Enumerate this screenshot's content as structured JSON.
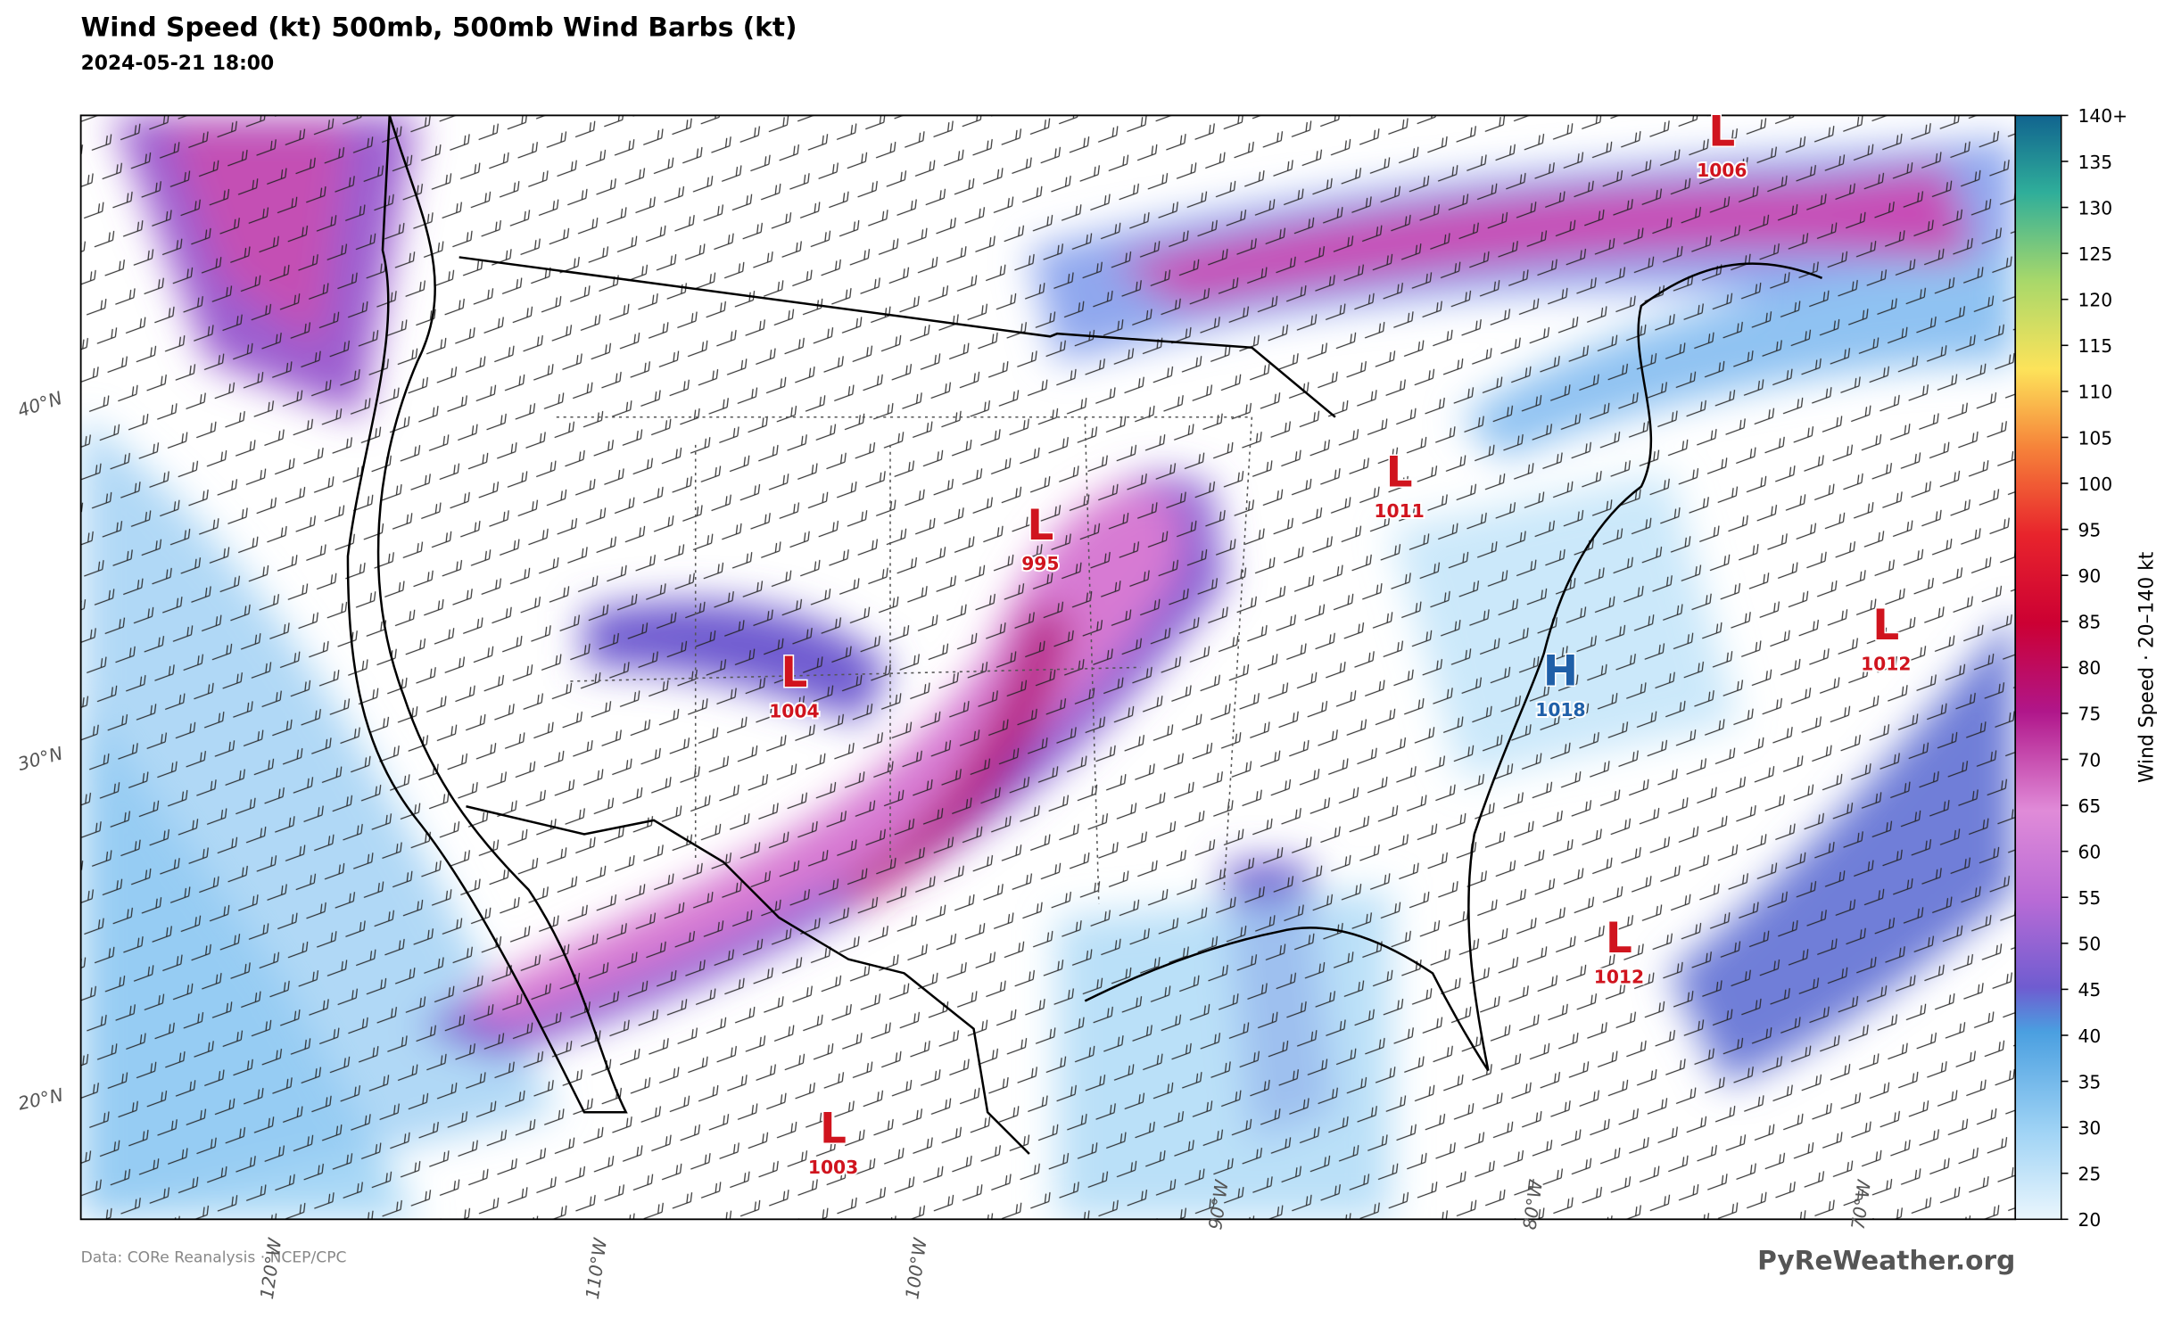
{
  "header": {
    "title": "Wind Speed (kt)  500mb, 500mb Wind Barbs (kt)",
    "subtitle": "2024-05-21 18:00"
  },
  "pressure_centers": [
    {
      "label": "L",
      "value": 1006
    },
    {
      "label": "L",
      "value": 995
    },
    {
      "label": "L",
      "value": 1011
    },
    {
      "label": "L",
      "value": 1004
    },
    {
      "label": "H",
      "value": 1018
    },
    {
      "label": "L",
      "value": 1012
    },
    {
      "label": "L",
      "value": 1012
    },
    {
      "label": "L",
      "value": 1003
    }
  ],
  "latitude_labels": [
    "40°N",
    "30°N",
    "20°N"
  ],
  "longitude_labels": [
    "120°W",
    "110°W",
    "100°W",
    "90°W",
    "80°W",
    "70°W"
  ],
  "colorbar": {
    "label": "Wind Speed  ·  20–140 kt",
    "lim": [
      20,
      140
    ],
    "ticks": [
      20,
      25,
      30,
      35,
      40,
      45,
      50,
      55,
      60,
      65,
      70,
      75,
      80,
      85,
      90,
      95,
      100,
      105,
      110,
      115,
      120,
      125,
      130,
      135,
      {
        "value": 140,
        "label": "140+"
      }
    ]
  },
  "footer": {
    "source": "Data: CORe Reanalysis  ·  NCEP/CPC",
    "brand": "PyReWeather.org"
  }
}
